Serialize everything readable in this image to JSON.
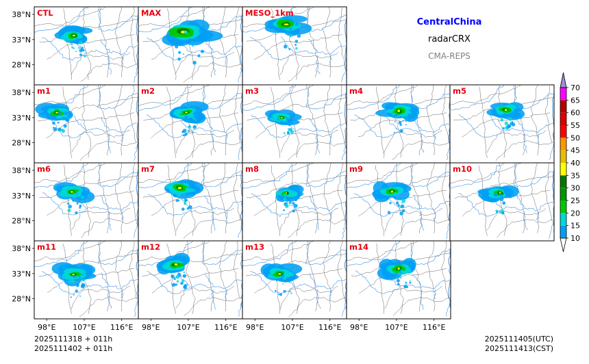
{
  "header": {
    "region": "CentralChina",
    "product": "radarCRX",
    "system": "CMA-REPS"
  },
  "panels": [
    {
      "label": "CTL",
      "echo": {
        "lon": 104.5,
        "lat": 33.8,
        "size": 0.9,
        "core": 0.45
      }
    },
    {
      "label": "MAX",
      "echo": {
        "lon": 106.0,
        "lat": 34.5,
        "size": 1.5,
        "core": 0.9
      }
    },
    {
      "label": "MESO_1km",
      "echo": {
        "lon": 105.5,
        "lat": 36.0,
        "size": 1.1,
        "core": 0.7
      }
    },
    {
      "label": "m1",
      "echo": {
        "lon": 100.5,
        "lat": 34.0,
        "size": 0.9,
        "core": 0.5
      }
    },
    {
      "label": "m2",
      "echo": {
        "lon": 106.5,
        "lat": 34.0,
        "size": 1.0,
        "core": 0.3
      }
    },
    {
      "label": "m3",
      "echo": {
        "lon": 104.5,
        "lat": 33.0,
        "size": 0.8,
        "core": 0.3
      }
    },
    {
      "label": "m4",
      "echo": {
        "lon": 107.5,
        "lat": 34.3,
        "size": 1.0,
        "core": 0.6
      }
    },
    {
      "label": "m5",
      "echo": {
        "lon": 108.5,
        "lat": 34.5,
        "size": 0.9,
        "core": 0.5
      }
    },
    {
      "label": "m6",
      "echo": {
        "lon": 104.0,
        "lat": 33.7,
        "size": 0.9,
        "core": 0.45
      }
    },
    {
      "label": "m7",
      "echo": {
        "lon": 105.0,
        "lat": 34.5,
        "size": 1.0,
        "core": 0.6
      }
    },
    {
      "label": "m8",
      "echo": {
        "lon": 105.5,
        "lat": 33.5,
        "size": 0.8,
        "core": 0.4
      }
    },
    {
      "label": "m9",
      "echo": {
        "lon": 106.0,
        "lat": 33.8,
        "size": 1.0,
        "core": 0.5
      }
    },
    {
      "label": "m10",
      "echo": {
        "lon": 107.0,
        "lat": 33.5,
        "size": 0.9,
        "core": 0.4
      }
    },
    {
      "label": "m11",
      "echo": {
        "lon": 104.5,
        "lat": 32.8,
        "size": 1.0,
        "core": 0.4
      }
    },
    {
      "label": "m12",
      "echo": {
        "lon": 104.0,
        "lat": 34.8,
        "size": 1.0,
        "core": 0.6
      }
    },
    {
      "label": "m13",
      "echo": {
        "lon": 104.0,
        "lat": 32.9,
        "size": 1.0,
        "core": 0.4
      }
    },
    {
      "label": "m14",
      "echo": {
        "lon": 107.5,
        "lat": 34.0,
        "size": 1.0,
        "core": 0.6
      }
    }
  ],
  "axes": {
    "lat_ticks": [
      38,
      33,
      28
    ],
    "lat_labels": [
      "38°N",
      "33°N",
      "28°N"
    ],
    "lon_ticks": [
      98,
      107,
      116
    ],
    "lon_labels": [
      "98°E",
      "107°E",
      "116°E"
    ],
    "lon_range": [
      95,
      120
    ],
    "lat_range": [
      24,
      39.5
    ]
  },
  "colorbar": {
    "levels": [
      10,
      15,
      20,
      25,
      30,
      35,
      40,
      45,
      50,
      55,
      60,
      65,
      70
    ],
    "labels": [
      "10",
      "15",
      "20",
      "25",
      "30",
      "35",
      "40",
      "45",
      "50",
      "55",
      "60",
      "65",
      "70"
    ],
    "colors": [
      "#009ff5",
      "#00d7d7",
      "#00c800",
      "#009600",
      "#007800",
      "#ffff00",
      "#e6be00",
      "#ff9600",
      "#ff0000",
      "#dc0000",
      "#b40000",
      "#ff00ff",
      "#9600b4",
      "#9b8cd2"
    ]
  },
  "footer": {
    "init_line1": "2025111318  +  011h",
    "init_line2": "2025111402  +  011h",
    "valid_utc": "2025111405(UTC)",
    "valid_cst": "2025111413(CST)"
  },
  "colors": {
    "label": "#e8000f",
    "region_title": "#0000ff",
    "system_title": "#808080",
    "river": "#5aa0e6",
    "border": "#000000"
  }
}
